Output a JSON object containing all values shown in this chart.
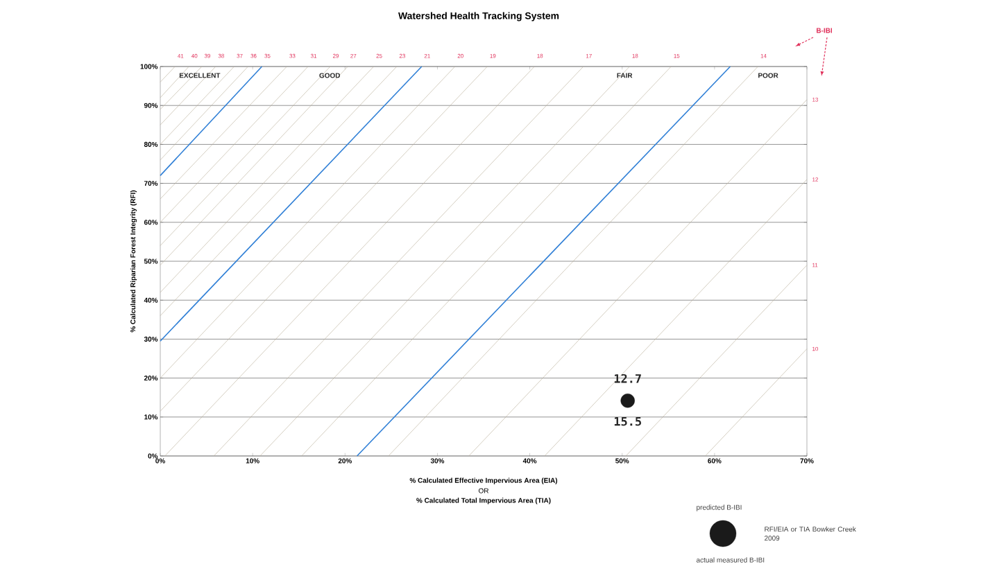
{
  "chart_data": {
    "type": "line",
    "title": "Watershed Health Tracking System",
    "xlabel": "% Calculated Effective Impervious Area (EIA)",
    "ylabel": "% Calculated Riparian Forest Integrity (RFI)",
    "xlim": [
      0,
      70
    ],
    "ylim": [
      0,
      100
    ],
    "xticks": [
      {
        "value": 0,
        "label": "0%"
      },
      {
        "value": 10,
        "label": "10%"
      },
      {
        "value": 20,
        "label": "20%"
      },
      {
        "value": 30,
        "label": "30%"
      },
      {
        "value": 40,
        "label": "40%"
      },
      {
        "value": 50,
        "label": "50%"
      },
      {
        "value": 60,
        "label": "60%"
      },
      {
        "value": 70,
        "label": "70%"
      }
    ],
    "yticks": [
      {
        "value": 0,
        "label": "0%"
      },
      {
        "value": 10,
        "label": "10%"
      },
      {
        "value": 20,
        "label": "20%"
      },
      {
        "value": 30,
        "label": "30%"
      },
      {
        "value": 40,
        "label": "40%"
      },
      {
        "value": 50,
        "label": "50%"
      },
      {
        "value": 60,
        "label": "60%"
      },
      {
        "value": 70,
        "label": "70%"
      },
      {
        "value": 80,
        "label": "80%"
      },
      {
        "value": 90,
        "label": "90%"
      },
      {
        "value": 100,
        "label": "100%"
      }
    ],
    "grid": "y",
    "legend": "bottom right",
    "series": [
      {
        "name": "41",
        "color": "#b8ae98",
        "x": [
          0,
          1.6
        ],
        "values": [
          96,
          100
        ]
      },
      {
        "name": "40",
        "color": "#b8ae98",
        "x": [
          0,
          3.1
        ],
        "values": [
          92,
          100
        ]
      },
      {
        "name": "39",
        "color": "#b8ae98",
        "x": [
          0,
          4.5
        ],
        "values": [
          89,
          100
        ]
      },
      {
        "name": "38",
        "color": "#b8ae98",
        "x": [
          0,
          6.0
        ],
        "values": [
          85,
          100
        ]
      },
      {
        "name": "37",
        "color": "#b8ae98",
        "x": [
          0,
          8.0
        ],
        "values": [
          80,
          100
        ]
      },
      {
        "name": "36",
        "color": "#b8ae98",
        "x": [
          0,
          9.5
        ],
        "values": [
          76,
          100
        ]
      },
      {
        "name": "35",
        "color": "#2f7fd6",
        "x": [
          0,
          11.0
        ],
        "values": [
          72,
          100
        ]
      },
      {
        "name": "33",
        "color": "#b8ae98",
        "x": [
          0,
          13.7
        ],
        "values": [
          66,
          100
        ]
      },
      {
        "name": "31",
        "color": "#b8ae98",
        "x": [
          0,
          16.0
        ],
        "values": [
          60,
          100
        ]
      },
      {
        "name": "29",
        "color": "#b8ae98",
        "x": [
          0,
          18.4
        ],
        "values": [
          54,
          100
        ]
      },
      {
        "name": "27",
        "color": "#b8ae98",
        "x": [
          0,
          20.3
        ],
        "values": [
          49,
          100
        ]
      },
      {
        "name": "25",
        "color": "#b8ae98",
        "x": [
          0,
          23.1
        ],
        "values": [
          42,
          100
        ]
      },
      {
        "name": "23",
        "color": "#b8ae98",
        "x": [
          0,
          25.6
        ],
        "values": [
          36,
          100
        ]
      },
      {
        "name": "21",
        "color": "#2f7fd6",
        "x": [
          0,
          28.3
        ],
        "values": [
          29.5,
          100
        ]
      },
      {
        "name": "20",
        "color": "#b8ae98",
        "x": [
          0,
          31.9
        ],
        "values": [
          20,
          100
        ]
      },
      {
        "name": "19",
        "color": "#b8ae98",
        "x": [
          0,
          35.4
        ],
        "values": [
          11.5,
          100
        ]
      },
      {
        "name": "18",
        "color": "#b8ae98",
        "x": [
          0.5,
          40.5
        ],
        "values": [
          0,
          100
        ]
      },
      {
        "name": "17",
        "color": "#b8ae98",
        "x": [
          5.8,
          45.8
        ],
        "values": [
          0,
          100
        ]
      },
      {
        "name": "18",
        "color": "#b8ae98",
        "x": [
          10.8,
          50.8
        ],
        "values": [
          0,
          100
        ]
      },
      {
        "name": "15",
        "color": "#b8ae98",
        "x": [
          15.3,
          55.3
        ],
        "values": [
          0,
          100
        ]
      },
      {
        "color": "#2f7fd6",
        "x": [
          21.3,
          61.7
        ],
        "values": [
          0,
          100
        ]
      },
      {
        "name": "14",
        "color": "#b8ae98",
        "x": [
          24.7,
          64.7
        ],
        "values": [
          0,
          100
        ]
      },
      {
        "name": "13",
        "color": "#b8ae98",
        "x": [
          33.4,
          70
        ],
        "values": [
          0,
          91.5
        ]
      },
      {
        "name": "12",
        "color": "#b8ae98",
        "x": [
          41.6,
          70
        ],
        "values": [
          0,
          71
        ]
      },
      {
        "name": "11",
        "color": "#b8ae98",
        "x": [
          50.4,
          70
        ],
        "values": [
          0,
          49
        ]
      },
      {
        "name": "10",
        "color": "#b8ae98",
        "x": [
          59,
          70
        ],
        "values": [
          0,
          27.5
        ]
      },
      {
        "name": "RFI/EIA or TIA Bowker Creek 2009",
        "type": "scatter",
        "marker": "circle",
        "color": "#1a1a1a",
        "x": [
          50.6
        ],
        "values": [
          14.2
        ]
      }
    ],
    "annotations": [
      "EXCELLENT",
      "GOOD",
      "FAIR",
      "POOR",
      {
        "text": "12.7",
        "x": 50.6,
        "y": 14.2
      },
      {
        "text": "15.5",
        "x": 50.6,
        "y": 14.2
      },
      "OR",
      "% Calculated Total Impervious Area (TIA)",
      "B-IBI",
      "predicted B-IBI",
      "actual measured B-IBI"
    ]
  }
}
